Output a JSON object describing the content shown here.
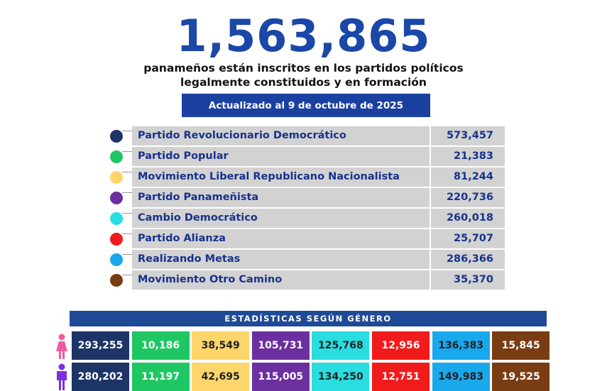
{
  "total": "1,563,865",
  "subtitle_line1": "panameños están inscritos en los partidos políticos",
  "subtitle_line2": "legalmente constituidos y en formación",
  "updated": "Actualizado al 9 de octubre de 2025",
  "parties": [
    {
      "name": "Partido Revolucionario Democrático",
      "value": "573,457",
      "color": "#1d3466"
    },
    {
      "name": "Partido Popular",
      "value": "21,383",
      "color": "#1fc764"
    },
    {
      "name": "Movimiento Liberal Republicano Nacionalista",
      "value": "81,244",
      "color": "#fdd56a"
    },
    {
      "name": "Partido Panameñista",
      "value": "220,736",
      "color": "#6c2fa0"
    },
    {
      "name": "Cambio Democrático",
      "value": "260,018",
      "color": "#29dde0"
    },
    {
      "name": "Partido Alianza",
      "value": "25,707",
      "color": "#f21b1b"
    },
    {
      "name": "Realizando Metas",
      "value": "286,366",
      "color": "#1aa8ec"
    },
    {
      "name": "Movimiento Otro Camino",
      "value": "35,370",
      "color": "#7a3c12"
    }
  ],
  "gender_title": "ESTADÍSTICAS SEGÚN GÉNERO",
  "female": [
    "293,255",
    "10,186",
    "38,549",
    "105,731",
    "125,768",
    "12,956",
    "136,383",
    "15,845"
  ],
  "male": [
    "280,202",
    "11,197",
    "42,695",
    "115,005",
    "134,250",
    "12,751",
    "149,983",
    "19,525"
  ]
}
